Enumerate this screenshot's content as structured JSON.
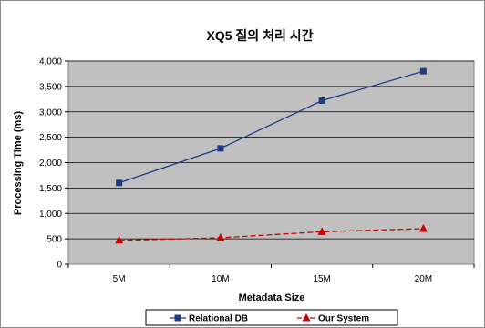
{
  "chart_data": {
    "type": "line",
    "title": "XQ5 질의 처리 시간",
    "xlabel": "Metadata Size",
    "ylabel": "Processing Time (ms)",
    "categories": [
      "5M",
      "10M",
      "15M",
      "20M"
    ],
    "ylim": [
      0,
      4000
    ],
    "yticks": [
      0,
      500,
      1000,
      1500,
      2000,
      2500,
      3000,
      3500,
      4000
    ],
    "ytick_labels": [
      "0",
      "500",
      "1,000",
      "1,500",
      "2,000",
      "2,500",
      "3,000",
      "3,500",
      "4,000"
    ],
    "grid": true,
    "legend_position": "bottom",
    "series": [
      {
        "name": "Relational DB",
        "values": [
          1600,
          2280,
          3220,
          3800
        ],
        "color": "#1f3c88",
        "marker": "square",
        "line_style": "solid"
      },
      {
        "name": "Our System",
        "values": [
          470,
          520,
          640,
          700
        ],
        "color": "#cc0000",
        "marker": "triangle",
        "line_style": "dashed"
      }
    ],
    "plot_background": "#c0c0c0"
  }
}
